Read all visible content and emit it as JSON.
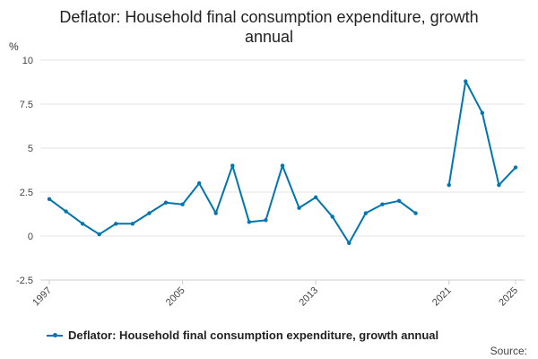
{
  "chart_data": {
    "type": "line",
    "title_lines": [
      "Deflator: Household final consumption expenditure, growth",
      "annual"
    ],
    "y_unit": "%",
    "ylim": [
      -2.5,
      10
    ],
    "y_ticks": [
      -2.5,
      0,
      2.5,
      5,
      7.5,
      10
    ],
    "y_tick_labels": [
      "-2.5",
      "0",
      "2.5",
      "5",
      "7.5",
      "10"
    ],
    "xlim": [
      1997,
      2025
    ],
    "x_tick_labels": [
      "1997",
      "2005",
      "2013",
      "2021",
      "2025"
    ],
    "x_ticks": [
      1997,
      2005,
      2013,
      2021,
      2025
    ],
    "grid": true,
    "series": [
      {
        "name": "Deflator: Household final consumption expenditure, growth annual",
        "color": "#0075b0",
        "x": [
          1997,
          1998,
          1999,
          2000,
          2001,
          2002,
          2003,
          2004,
          2005,
          2006,
          2007,
          2008,
          2009,
          2010,
          2011,
          2012,
          2013,
          2014,
          2015,
          2016,
          2017,
          2018,
          2019,
          2020,
          2021,
          2022,
          2023,
          2024,
          2025
        ],
        "values": [
          2.1,
          1.4,
          0.7,
          0.1,
          0.7,
          0.7,
          1.3,
          1.9,
          1.8,
          3.0,
          1.3,
          4.0,
          0.8,
          0.9,
          4.0,
          1.6,
          2.2,
          1.1,
          -0.4,
          1.3,
          1.8,
          2.0,
          1.3,
          null,
          2.9,
          8.8,
          7.0,
          2.9,
          3.9
        ]
      }
    ],
    "legend_label": "Deflator: Household final consumption expenditure, growth annual",
    "source_label": "Source:"
  }
}
